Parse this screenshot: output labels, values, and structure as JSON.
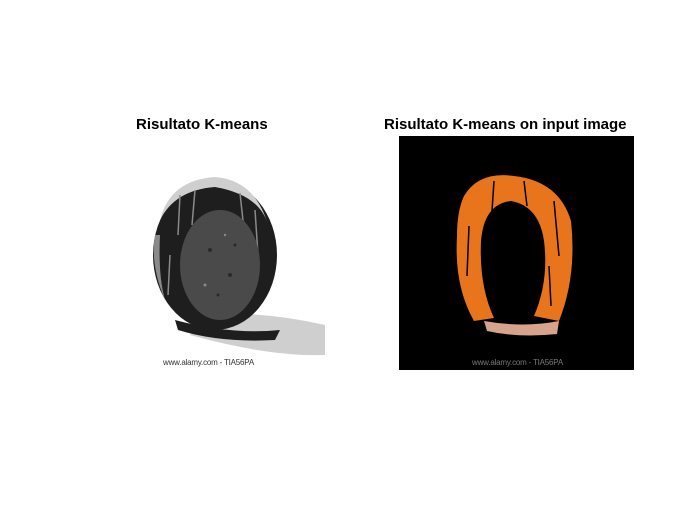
{
  "figure": {
    "left_panel": {
      "title": "Risultato K-means",
      "watermark": "www.alamy.com - TIA56PA",
      "image": "grayscale-clustered-coconut"
    },
    "right_panel": {
      "title": "Risultato K-means on input image",
      "watermark": "www.alamy.com - TIA56PA",
      "image": "orange-masked-coconut-on-black"
    }
  },
  "colors": {
    "background": "#ffffff",
    "mask_background": "#000000",
    "orange_segment": "#e8741c",
    "gray_cluster_dark": "#1e1e1e",
    "gray_cluster_mid": "#4a4a4a",
    "gray_cluster_light": "#cfcfcf"
  }
}
